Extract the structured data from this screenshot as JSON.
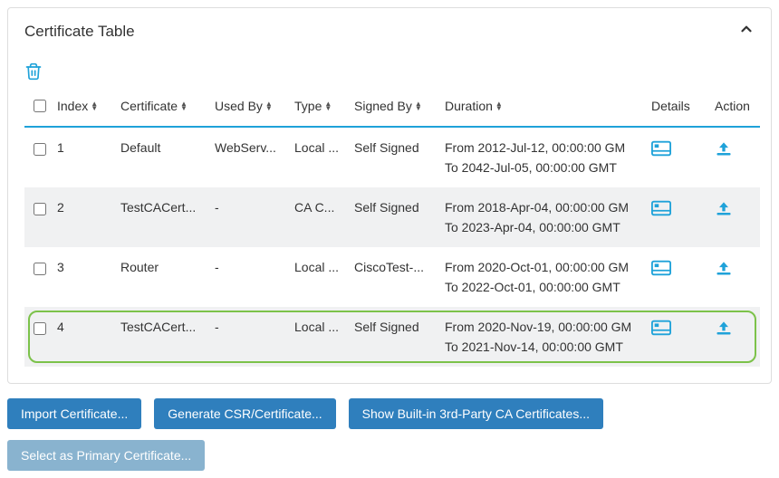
{
  "panel": {
    "title": "Certificate Table"
  },
  "columns": {
    "index": "Index",
    "certificate": "Certificate",
    "usedBy": "Used By",
    "type": "Type",
    "signedBy": "Signed By",
    "duration": "Duration",
    "details": "Details",
    "action": "Action"
  },
  "rows": [
    {
      "index": "1",
      "certificate": "Default",
      "usedBy": "WebServ...",
      "type": "Local ...",
      "signedBy": "Self Signed",
      "durationFrom": "From 2012-Jul-12, 00:00:00 GM",
      "durationTo": "To 2042-Jul-05, 00:00:00 GMT",
      "alt": false,
      "highlight": false
    },
    {
      "index": "2",
      "certificate": "TestCACert...",
      "usedBy": "-",
      "type": "CA C...",
      "signedBy": "Self Signed",
      "durationFrom": "From 2018-Apr-04, 00:00:00 GM",
      "durationTo": "To 2023-Apr-04, 00:00:00 GMT",
      "alt": true,
      "highlight": false
    },
    {
      "index": "3",
      "certificate": "Router",
      "usedBy": "-",
      "type": "Local ...",
      "signedBy": "CiscoTest-...",
      "durationFrom": "From 2020-Oct-01, 00:00:00 GM",
      "durationTo": "To 2022-Oct-01, 00:00:00 GMT",
      "alt": false,
      "highlight": false
    },
    {
      "index": "4",
      "certificate": "TestCACert...",
      "usedBy": "-",
      "type": "Local ...",
      "signedBy": "Self Signed",
      "durationFrom": "From 2020-Nov-19, 00:00:00 GM",
      "durationTo": "To 2021-Nov-14, 00:00:00 GMT",
      "alt": true,
      "highlight": true
    }
  ],
  "buttons": {
    "import": "Import Certificate...",
    "generate": "Generate CSR/Certificate...",
    "show3p": "Show Built-in 3rd-Party CA Certificates...",
    "selectPrimary": "Select as Primary Certificate..."
  },
  "colors": {
    "accent": "#1fa2d9",
    "btn": "#2f7fbd",
    "btnDisabled": "#89b3cf",
    "highlightBorder": "#7cc24a",
    "rowAlt": "#f0f1f2"
  }
}
